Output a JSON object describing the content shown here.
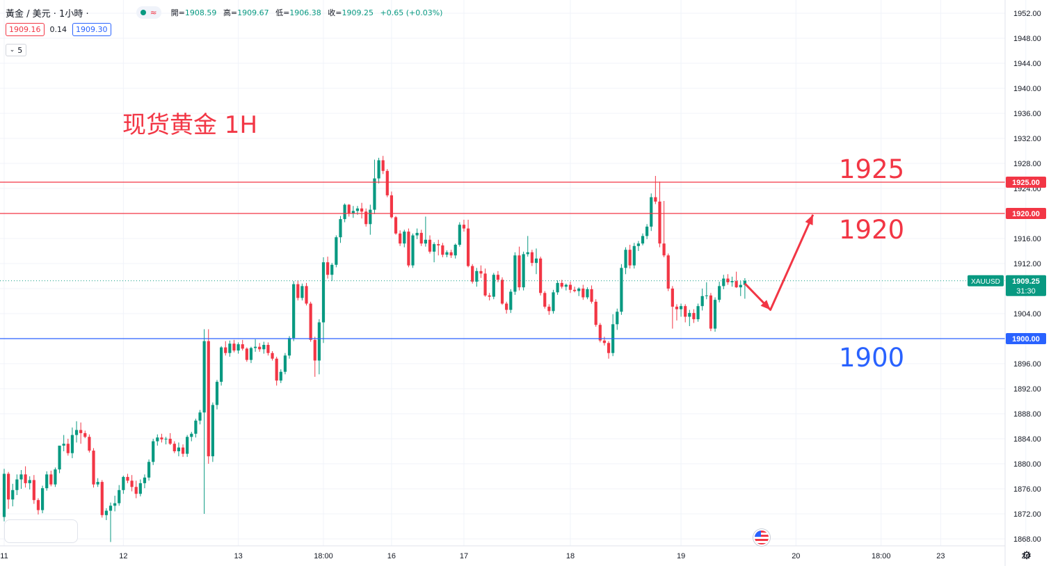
{
  "header": {
    "symbol": "黃金 / 美元 · 1小時 ·",
    "open_label": "開=",
    "open": "1908.59",
    "high_label": "高=",
    "high": "1909.67",
    "low_label": "低=",
    "low": "1906.38",
    "close_label": "收=",
    "close": "1909.25",
    "change": "+0.65 (+0.03%)"
  },
  "quote": {
    "sell": "1909.16",
    "spread": "0.14",
    "buy": "1909.30"
  },
  "indicator": {
    "chevron_icon": "chevron-down-icon",
    "label": "5"
  },
  "annotations": {
    "title": "现货黄金 1H",
    "level_1925": "1925",
    "level_1920": "1920",
    "level_1900": "1900"
  },
  "price_tag": {
    "symbol": "XAUUSD",
    "price": "1909.25",
    "countdown": "31:30"
  },
  "colors": {
    "up": "#089981",
    "down": "#f23645",
    "resistance": "#f23645",
    "support": "#2962ff"
  },
  "icons": {
    "event": "us-flag-icon",
    "settings": "gear-icon"
  },
  "chart_data": {
    "type": "candlestick",
    "title": "现货黄金 1H",
    "ylim": [
      1866,
      1954
    ],
    "y_ticks": [
      1868,
      1872,
      1876,
      1880,
      1884,
      1888,
      1892,
      1896,
      1900,
      1904,
      1908,
      1912,
      1916,
      1920,
      1924,
      1928,
      1932,
      1936,
      1940,
      1944,
      1948,
      1952
    ],
    "y_tick_labels": [
      "1868.00",
      "1872.00",
      "1876.00",
      "1880.00",
      "1884.00",
      "1888.00",
      "1892.00",
      "1896.00",
      "1900.00",
      "1904.00",
      "1908.00",
      "1912.00",
      "1916.00",
      "1920.00",
      "1924.00",
      "1928.00",
      "1932.00",
      "1936.00",
      "1940.00",
      "1944.00",
      "1948.00",
      "1952.00"
    ],
    "x_ticks": [
      {
        "label": "11",
        "bar": 0
      },
      {
        "label": "12",
        "bar": 28
      },
      {
        "label": "13",
        "bar": 55
      },
      {
        "label": "18:00",
        "bar": 75
      },
      {
        "label": "16",
        "bar": 91
      },
      {
        "label": "17",
        "bar": 108
      },
      {
        "label": "18",
        "bar": 133
      },
      {
        "label": "19",
        "bar": 159
      },
      {
        "label": "20",
        "bar": 186
      },
      {
        "label": "18:00",
        "bar": 206
      },
      {
        "label": "23",
        "bar": 220
      },
      {
        "label": "24",
        "bar": 240
      }
    ],
    "horizontal_lines": [
      {
        "price": 1925.0,
        "label": "1925.00",
        "color": "#f23645"
      },
      {
        "price": 1920.0,
        "label": "1920.00",
        "color": "#f23645"
      },
      {
        "price": 1900.0,
        "label": "1900.00",
        "color": "#2962ff"
      }
    ],
    "last_price": 1909.25,
    "projection": [
      [
        174,
        1908.8
      ],
      [
        180,
        1904.6
      ],
      [
        190,
        1919.8
      ]
    ],
    "candles": [
      [
        1871.5,
        1879.2,
        1870.8,
        1878.4
      ],
      [
        1878.4,
        1878.7,
        1872.8,
        1874.3
      ],
      [
        1874.3,
        1876.8,
        1873.2,
        1875.8
      ],
      [
        1875.8,
        1878.3,
        1875.0,
        1877.5
      ],
      [
        1877.5,
        1879.0,
        1876.0,
        1878.3
      ],
      [
        1878.3,
        1879.6,
        1876.2,
        1876.9
      ],
      [
        1876.9,
        1878.0,
        1875.9,
        1877.4
      ],
      [
        1877.4,
        1878.2,
        1873.6,
        1874.2
      ],
      [
        1874.2,
        1874.5,
        1871.9,
        1872.6
      ],
      [
        1872.6,
        1876.5,
        1872.1,
        1876.1
      ],
      [
        1876.1,
        1878.8,
        1875.7,
        1878.3
      ],
      [
        1878.3,
        1878.9,
        1876.4,
        1876.7
      ],
      [
        1876.7,
        1879.4,
        1876.3,
        1879.1
      ],
      [
        1879.1,
        1882.5,
        1878.5,
        1882.9
      ],
      [
        1882.9,
        1884.6,
        1882.0,
        1883.2
      ],
      [
        1883.2,
        1884.0,
        1881.3,
        1881.7
      ],
      [
        1881.7,
        1885.8,
        1880.9,
        1884.6
      ],
      [
        1884.6,
        1886.8,
        1883.4,
        1885.4
      ],
      [
        1885.4,
        1886.6,
        1883.2,
        1884.9
      ],
      [
        1884.9,
        1885.3,
        1884.1,
        1884.3
      ],
      [
        1884.3,
        1884.7,
        1881.8,
        1882.1
      ],
      [
        1882.1,
        1882.5,
        1876.2,
        1876.7
      ],
      [
        1876.7,
        1877.7,
        1876.3,
        1877.1
      ],
      [
        1877.1,
        1877.4,
        1871.4,
        1871.8
      ],
      [
        1871.8,
        1872.9,
        1871.0,
        1872.5
      ],
      [
        1872.5,
        1873.8,
        1867.5,
        1873.3
      ],
      [
        1873.3,
        1874.9,
        1872.4,
        1873.7
      ],
      [
        1873.7,
        1876.6,
        1873.3,
        1875.8
      ],
      [
        1875.8,
        1878.1,
        1875.2,
        1877.9
      ],
      [
        1877.9,
        1878.4,
        1876.9,
        1877.3
      ],
      [
        1877.3,
        1878.2,
        1875.6,
        1876.3
      ],
      [
        1876.3,
        1877.3,
        1874.5,
        1875.2
      ],
      [
        1875.2,
        1877.5,
        1874.8,
        1876.9
      ],
      [
        1876.9,
        1878.3,
        1876.1,
        1877.8
      ],
      [
        1877.8,
        1880.7,
        1877.3,
        1880.3
      ],
      [
        1880.3,
        1884.0,
        1879.8,
        1883.6
      ],
      [
        1883.6,
        1884.7,
        1882.9,
        1884.2
      ],
      [
        1884.2,
        1884.8,
        1883.4,
        1883.9
      ],
      [
        1883.9,
        1884.3,
        1883.1,
        1884.0
      ],
      [
        1884.0,
        1884.9,
        1883.0,
        1883.2
      ],
      [
        1883.2,
        1883.6,
        1881.7,
        1882.0
      ],
      [
        1882.0,
        1883.4,
        1881.2,
        1882.6
      ],
      [
        1882.6,
        1883.1,
        1881.1,
        1881.6
      ],
      [
        1881.6,
        1884.6,
        1881.1,
        1884.3
      ],
      [
        1884.3,
        1885.1,
        1883.6,
        1884.8
      ],
      [
        1884.8,
        1887.2,
        1884.2,
        1886.9
      ],
      [
        1886.9,
        1888.6,
        1886.3,
        1888.2
      ],
      [
        1888.2,
        1901.5,
        1872.0,
        1899.6
      ],
      [
        1899.6,
        1901.5,
        1880.0,
        1881.2
      ],
      [
        1881.2,
        1889.8,
        1880.3,
        1889.4
      ],
      [
        1889.4,
        1893.4,
        1888.7,
        1893.1
      ],
      [
        1893.1,
        1898.8,
        1892.5,
        1898.6
      ],
      [
        1898.6,
        1899.6,
        1897.3,
        1897.7
      ],
      [
        1897.7,
        1899.7,
        1897.1,
        1899.2
      ],
      [
        1899.2,
        1899.8,
        1897.8,
        1898.1
      ],
      [
        1898.1,
        1899.4,
        1897.6,
        1899.1
      ],
      [
        1899.1,
        1899.8,
        1898.1,
        1898.4
      ],
      [
        1898.4,
        1898.6,
        1896.3,
        1896.6
      ],
      [
        1896.6,
        1898.7,
        1896.1,
        1898.5
      ],
      [
        1898.5,
        1899.9,
        1897.9,
        1898.7
      ],
      [
        1898.7,
        1899.3,
        1897.9,
        1898.3
      ],
      [
        1898.3,
        1899.5,
        1897.6,
        1899.0
      ],
      [
        1899.0,
        1899.4,
        1897.3,
        1897.7
      ],
      [
        1897.7,
        1898.0,
        1896.5,
        1896.8
      ],
      [
        1896.8,
        1897.1,
        1892.5,
        1893.3
      ],
      [
        1893.3,
        1895.1,
        1892.9,
        1894.7
      ],
      [
        1894.7,
        1897.7,
        1894.3,
        1897.3
      ],
      [
        1897.3,
        1900.4,
        1896.8,
        1900.1
      ],
      [
        1900.1,
        1909.2,
        1899.6,
        1908.7
      ],
      [
        1908.7,
        1909.3,
        1906.1,
        1906.5
      ],
      [
        1906.5,
        1908.8,
        1906.1,
        1908.4
      ],
      [
        1908.4,
        1908.9,
        1905.3,
        1905.6
      ],
      [
        1905.6,
        1905.9,
        1899.5,
        1899.8
      ],
      [
        1899.8,
        1900.3,
        1893.9,
        1896.5
      ],
      [
        1896.5,
        1903.1,
        1894.3,
        1902.6
      ],
      [
        1902.6,
        1913.0,
        1899.3,
        1912.2
      ],
      [
        1912.2,
        1913.1,
        1909.6,
        1910.2
      ],
      [
        1910.2,
        1912.1,
        1909.2,
        1911.8
      ],
      [
        1911.8,
        1916.5,
        1911.4,
        1916.2
      ],
      [
        1916.2,
        1919.6,
        1915.3,
        1919.1
      ],
      [
        1919.1,
        1921.6,
        1918.6,
        1921.4
      ],
      [
        1921.4,
        1921.5,
        1919.5,
        1920.0
      ],
      [
        1920.0,
        1921.2,
        1919.3,
        1920.4
      ],
      [
        1920.4,
        1921.2,
        1919.8,
        1920.8
      ],
      [
        1920.8,
        1921.7,
        1919.2,
        1920.3
      ],
      [
        1920.3,
        1920.8,
        1917.9,
        1918.3
      ],
      [
        1918.3,
        1921.4,
        1916.6,
        1920.6
      ],
      [
        1920.6,
        1928.6,
        1919.9,
        1925.6
      ],
      [
        1925.6,
        1928.9,
        1924.8,
        1928.5
      ],
      [
        1928.5,
        1929.2,
        1926.3,
        1926.8
      ],
      [
        1926.8,
        1927.1,
        1922.6,
        1922.9
      ],
      [
        1922.9,
        1923.5,
        1919.2,
        1919.4
      ],
      [
        1919.4,
        1919.6,
        1916.6,
        1916.8
      ],
      [
        1916.8,
        1917.3,
        1914.8,
        1915.2
      ],
      [
        1915.2,
        1917.4,
        1914.6,
        1917.1
      ],
      [
        1917.1,
        1917.6,
        1911.4,
        1911.7
      ],
      [
        1911.7,
        1916.8,
        1911.3,
        1916.5
      ],
      [
        1916.5,
        1917.6,
        1915.9,
        1916.9
      ],
      [
        1916.9,
        1917.4,
        1914.8,
        1915.2
      ],
      [
        1915.2,
        1919.5,
        1914.7,
        1915.8
      ],
      [
        1915.8,
        1916.5,
        1913.6,
        1913.9
      ],
      [
        1913.9,
        1915.4,
        1912.2,
        1915.1
      ],
      [
        1915.1,
        1915.8,
        1913.3,
        1914.9
      ],
      [
        1914.9,
        1915.3,
        1913.0,
        1913.4
      ],
      [
        1913.4,
        1914.1,
        1913.0,
        1913.8
      ],
      [
        1913.8,
        1914.2,
        1912.9,
        1913.3
      ],
      [
        1913.3,
        1915.2,
        1912.8,
        1915.0
      ],
      [
        1915.0,
        1918.6,
        1914.7,
        1918.2
      ],
      [
        1918.2,
        1919.0,
        1917.1,
        1917.6
      ],
      [
        1917.6,
        1919.0,
        1911.4,
        1911.6
      ],
      [
        1911.6,
        1911.9,
        1908.8,
        1909.1
      ],
      [
        1909.1,
        1911.3,
        1908.3,
        1910.8
      ],
      [
        1910.8,
        1911.7,
        1909.7,
        1910.4
      ],
      [
        1910.4,
        1911.2,
        1906.7,
        1906.9
      ],
      [
        1906.9,
        1907.3,
        1906.1,
        1906.7
      ],
      [
        1906.7,
        1910.5,
        1906.3,
        1910.2
      ],
      [
        1910.2,
        1910.8,
        1909.0,
        1909.4
      ],
      [
        1909.4,
        1909.8,
        1905.4,
        1905.6
      ],
      [
        1905.6,
        1905.9,
        1904.0,
        1904.6
      ],
      [
        1904.6,
        1907.9,
        1904.1,
        1907.5
      ],
      [
        1907.5,
        1913.8,
        1907.0,
        1913.3
      ],
      [
        1913.3,
        1914.7,
        1907.7,
        1908.2
      ],
      [
        1908.2,
        1913.9,
        1907.7,
        1913.5
      ],
      [
        1913.5,
        1916.4,
        1913.1,
        1913.8
      ],
      [
        1913.8,
        1914.2,
        1911.6,
        1912.1
      ],
      [
        1912.1,
        1914.4,
        1910.3,
        1912.8
      ],
      [
        1912.8,
        1913.1,
        1906.9,
        1907.3
      ],
      [
        1907.3,
        1907.6,
        1904.8,
        1905.1
      ],
      [
        1905.1,
        1905.5,
        1903.8,
        1904.4
      ],
      [
        1904.4,
        1907.8,
        1904.0,
        1907.4
      ],
      [
        1907.4,
        1909.3,
        1907.0,
        1908.9
      ],
      [
        1908.9,
        1909.4,
        1908.0,
        1908.3
      ],
      [
        1908.3,
        1908.8,
        1907.7,
        1908.6
      ],
      [
        1908.6,
        1909.1,
        1907.3,
        1907.8
      ],
      [
        1907.8,
        1908.3,
        1907.4,
        1907.6
      ],
      [
        1907.6,
        1908.2,
        1906.8,
        1908.0
      ],
      [
        1908.0,
        1908.6,
        1906.2,
        1906.6
      ],
      [
        1906.6,
        1908.2,
        1906.3,
        1907.9
      ],
      [
        1907.9,
        1908.5,
        1905.6,
        1905.9
      ],
      [
        1905.9,
        1906.3,
        1901.9,
        1902.2
      ],
      [
        1902.2,
        1902.5,
        1899.4,
        1899.7
      ],
      [
        1899.7,
        1900.3,
        1898.9,
        1899.3
      ],
      [
        1899.3,
        1899.6,
        1896.8,
        1897.7
      ],
      [
        1897.7,
        1903.9,
        1897.2,
        1902.3
      ],
      [
        1902.3,
        1904.8,
        1901.4,
        1904.3
      ],
      [
        1904.3,
        1911.9,
        1903.8,
        1911.3
      ],
      [
        1911.3,
        1914.6,
        1910.3,
        1914.2
      ],
      [
        1914.2,
        1915.0,
        1911.2,
        1911.7
      ],
      [
        1911.7,
        1915.3,
        1911.2,
        1914.8
      ],
      [
        1914.8,
        1915.6,
        1914.0,
        1915.2
      ],
      [
        1915.2,
        1916.8,
        1914.9,
        1916.4
      ],
      [
        1916.4,
        1918.3,
        1915.9,
        1917.9
      ],
      [
        1917.9,
        1923.2,
        1917.2,
        1922.6
      ],
      [
        1922.6,
        1926.0,
        1921.5,
        1921.9
      ],
      [
        1921.9,
        1925.1,
        1914.6,
        1915.2
      ],
      [
        1915.2,
        1922.0,
        1913.0,
        1913.3
      ],
      [
        1913.3,
        1913.6,
        1907.6,
        1908.0
      ],
      [
        1908.0,
        1908.4,
        1901.6,
        1905.1
      ],
      [
        1905.1,
        1905.5,
        1902.9,
        1904.7
      ],
      [
        1904.7,
        1905.6,
        1903.5,
        1905.2
      ],
      [
        1905.2,
        1905.5,
        1902.6,
        1903.5
      ],
      [
        1903.5,
        1904.6,
        1902.0,
        1904.1
      ],
      [
        1904.1,
        1904.7,
        1902.5,
        1903.1
      ],
      [
        1903.1,
        1905.6,
        1902.7,
        1905.2
      ],
      [
        1905.2,
        1908.0,
        1904.5,
        1906.8
      ],
      [
        1906.8,
        1909.0,
        1906.3,
        1906.9
      ],
      [
        1906.9,
        1907.3,
        1901.2,
        1901.6
      ],
      [
        1901.6,
        1906.6,
        1901.1,
        1906.2
      ],
      [
        1906.2,
        1909.1,
        1905.8,
        1908.4
      ],
      [
        1908.4,
        1910.2,
        1907.9,
        1909.6
      ],
      [
        1909.6,
        1910.3,
        1908.6,
        1909.0
      ],
      [
        1909.0,
        1909.9,
        1908.3,
        1909.2
      ],
      [
        1909.2,
        1910.7,
        1908.1,
        1908.2
      ],
      [
        1908.2,
        1909.2,
        1906.8,
        1908.59
      ],
      [
        1908.59,
        1909.67,
        1906.38,
        1909.25
      ]
    ]
  }
}
